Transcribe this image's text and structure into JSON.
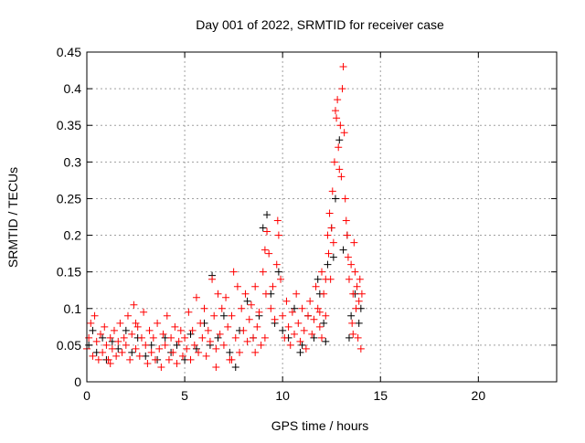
{
  "chart_data": {
    "type": "scatter",
    "title": "Day 001 of 2022, SRMTID for receiver case",
    "xlabel": "GPS time / hours",
    "ylabel": "SRMTID / TECUs",
    "xlim": [
      0,
      24
    ],
    "ylim": [
      0,
      0.45
    ],
    "xticks": [
      "0",
      "5",
      "10",
      "15",
      "20"
    ],
    "yticks": [
      "0",
      "0.05",
      "0.1",
      "0.15",
      "0.2",
      "0.25",
      "0.3",
      "0.35",
      "0.4",
      "0.45"
    ],
    "grid": true,
    "marker": "plus",
    "series": [
      {
        "name": "series-black",
        "color": "#000000",
        "points": [
          [
            0.1,
            0.05
          ],
          [
            0.3,
            0.07
          ],
          [
            0.5,
            0.04
          ],
          [
            0.8,
            0.06
          ],
          [
            1.0,
            0.03
          ],
          [
            1.3,
            0.055
          ],
          [
            1.6,
            0.045
          ],
          [
            2.0,
            0.07
          ],
          [
            2.3,
            0.04
          ],
          [
            2.6,
            0.06
          ],
          [
            3.0,
            0.035
          ],
          [
            3.3,
            0.05
          ],
          [
            3.6,
            0.03
          ],
          [
            4.0,
            0.06
          ],
          [
            4.3,
            0.04
          ],
          [
            4.6,
            0.05
          ],
          [
            5.0,
            0.03
          ],
          [
            5.3,
            0.065
          ],
          [
            5.6,
            0.045
          ],
          [
            6.0,
            0.08
          ],
          [
            6.3,
            0.05
          ],
          [
            6.4,
            0.145
          ],
          [
            6.7,
            0.06
          ],
          [
            7.0,
            0.09
          ],
          [
            7.3,
            0.04
          ],
          [
            7.6,
            0.02
          ],
          [
            7.8,
            0.07
          ],
          [
            8.2,
            0.11
          ],
          [
            8.5,
            0.06
          ],
          [
            8.8,
            0.09
          ],
          [
            9.0,
            0.21
          ],
          [
            9.2,
            0.228
          ],
          [
            9.4,
            0.12
          ],
          [
            9.6,
            0.08
          ],
          [
            9.8,
            0.15
          ],
          [
            10.0,
            0.07
          ],
          [
            10.3,
            0.06
          ],
          [
            10.6,
            0.1
          ],
          [
            11.0,
            0.05
          ],
          [
            11.3,
            0.09
          ],
          [
            11.6,
            0.06
          ],
          [
            11.9,
            0.12
          ],
          [
            12.1,
            0.08
          ],
          [
            12.3,
            0.16
          ],
          [
            12.5,
            0.21
          ],
          [
            12.7,
            0.25
          ],
          [
            12.9,
            0.33
          ],
          [
            13.1,
            0.18
          ],
          [
            13.3,
            0.2
          ],
          [
            13.5,
            0.09
          ],
          [
            13.7,
            0.12
          ],
          [
            13.9,
            0.08
          ],
          [
            14.0,
            0.1
          ],
          [
            12.2,
            0.055
          ],
          [
            10.9,
            0.04
          ],
          [
            11.8,
            0.14
          ],
          [
            12.6,
            0.17
          ],
          [
            13.4,
            0.06
          ]
        ]
      },
      {
        "name": "series-red",
        "color": "#ff0000",
        "points": [
          [
            0.0,
            0.045
          ],
          [
            0.1,
            0.06
          ],
          [
            0.2,
            0.08
          ],
          [
            0.3,
            0.035
          ],
          [
            0.4,
            0.09
          ],
          [
            0.5,
            0.055
          ],
          [
            0.6,
            0.03
          ],
          [
            0.7,
            0.065
          ],
          [
            0.8,
            0.04
          ],
          [
            0.9,
            0.075
          ],
          [
            1.0,
            0.05
          ],
          [
            1.1,
            0.03
          ],
          [
            1.2,
            0.06
          ],
          [
            1.3,
            0.045
          ],
          [
            1.4,
            0.07
          ],
          [
            1.5,
            0.035
          ],
          [
            1.6,
            0.055
          ],
          [
            1.7,
            0.08
          ],
          [
            1.8,
            0.04
          ],
          [
            1.9,
            0.06
          ],
          [
            2.0,
            0.05
          ],
          [
            2.1,
            0.09
          ],
          [
            2.2,
            0.03
          ],
          [
            2.3,
            0.065
          ],
          [
            2.4,
            0.105
          ],
          [
            2.5,
            0.045
          ],
          [
            2.6,
            0.075
          ],
          [
            2.7,
            0.035
          ],
          [
            2.8,
            0.06
          ],
          [
            2.9,
            0.095
          ],
          [
            3.0,
            0.05
          ],
          [
            3.1,
            0.025
          ],
          [
            3.2,
            0.07
          ],
          [
            3.3,
            0.04
          ],
          [
            3.4,
            0.06
          ],
          [
            3.5,
            0.03
          ],
          [
            3.6,
            0.08
          ],
          [
            3.7,
            0.045
          ],
          [
            3.8,
            0.02
          ],
          [
            3.9,
            0.065
          ],
          [
            4.0,
            0.05
          ],
          [
            4.1,
            0.09
          ],
          [
            4.2,
            0.03
          ],
          [
            4.3,
            0.06
          ],
          [
            4.4,
            0.04
          ],
          [
            4.5,
            0.075
          ],
          [
            4.6,
            0.025
          ],
          [
            4.7,
            0.055
          ],
          [
            4.8,
            0.07
          ],
          [
            4.9,
            0.035
          ],
          [
            5.0,
            0.06
          ],
          [
            5.1,
            0.045
          ],
          [
            5.2,
            0.095
          ],
          [
            5.3,
            0.03
          ],
          [
            5.4,
            0.07
          ],
          [
            5.5,
            0.05
          ],
          [
            5.6,
            0.115
          ],
          [
            5.7,
            0.04
          ],
          [
            5.8,
            0.08
          ],
          [
            5.9,
            0.06
          ],
          [
            6.0,
            0.1
          ],
          [
            6.1,
            0.035
          ],
          [
            6.2,
            0.07
          ],
          [
            6.3,
            0.055
          ],
          [
            6.4,
            0.14
          ],
          [
            6.5,
            0.09
          ],
          [
            6.6,
            0.045
          ],
          [
            6.7,
            0.12
          ],
          [
            6.8,
            0.065
          ],
          [
            6.9,
            0.1
          ],
          [
            7.0,
            0.05
          ],
          [
            7.1,
            0.115
          ],
          [
            7.2,
            0.075
          ],
          [
            7.3,
            0.03
          ],
          [
            7.4,
            0.09
          ],
          [
            7.5,
            0.15
          ],
          [
            7.6,
            0.06
          ],
          [
            7.7,
            0.13
          ],
          [
            7.8,
            0.04
          ],
          [
            7.9,
            0.1
          ],
          [
            8.0,
            0.07
          ],
          [
            8.1,
            0.12
          ],
          [
            8.2,
            0.055
          ],
          [
            8.3,
            0.085
          ],
          [
            8.4,
            0.105
          ],
          [
            8.5,
            0.06
          ],
          [
            8.6,
            0.13
          ],
          [
            8.7,
            0.075
          ],
          [
            8.8,
            0.095
          ],
          [
            8.9,
            0.05
          ],
          [
            9.0,
            0.15
          ],
          [
            9.1,
            0.18
          ],
          [
            9.15,
            0.12
          ],
          [
            9.2,
            0.205
          ],
          [
            9.3,
            0.175
          ],
          [
            9.4,
            0.1
          ],
          [
            9.5,
            0.13
          ],
          [
            9.6,
            0.085
          ],
          [
            9.7,
            0.16
          ],
          [
            9.75,
            0.22
          ],
          [
            9.8,
            0.2
          ],
          [
            9.9,
            0.14
          ],
          [
            10.0,
            0.09
          ],
          [
            10.1,
            0.06
          ],
          [
            10.2,
            0.11
          ],
          [
            10.3,
            0.075
          ],
          [
            10.4,
            0.05
          ],
          [
            10.5,
            0.095
          ],
          [
            10.6,
            0.065
          ],
          [
            10.7,
            0.12
          ],
          [
            10.8,
            0.08
          ],
          [
            10.9,
            0.055
          ],
          [
            11.0,
            0.1
          ],
          [
            11.1,
            0.07
          ],
          [
            11.2,
            0.045
          ],
          [
            11.3,
            0.09
          ],
          [
            11.4,
            0.11
          ],
          [
            11.5,
            0.065
          ],
          [
            11.6,
            0.085
          ],
          [
            11.7,
            0.13
          ],
          [
            11.8,
            0.1
          ],
          [
            11.9,
            0.075
          ],
          [
            12.0,
            0.15
          ],
          [
            12.1,
            0.12
          ],
          [
            12.2,
            0.09
          ],
          [
            12.3,
            0.2
          ],
          [
            12.35,
            0.175
          ],
          [
            12.4,
            0.23
          ],
          [
            12.45,
            0.14
          ],
          [
            12.5,
            0.21
          ],
          [
            12.55,
            0.26
          ],
          [
            12.6,
            0.19
          ],
          [
            12.65,
            0.3
          ],
          [
            12.7,
            0.37
          ],
          [
            12.75,
            0.36
          ],
          [
            12.8,
            0.385
          ],
          [
            12.85,
            0.32
          ],
          [
            12.9,
            0.29
          ],
          [
            12.95,
            0.35
          ],
          [
            13.0,
            0.28
          ],
          [
            13.05,
            0.4
          ],
          [
            13.1,
            0.43
          ],
          [
            13.15,
            0.34
          ],
          [
            13.2,
            0.25
          ],
          [
            13.25,
            0.22
          ],
          [
            13.3,
            0.2
          ],
          [
            13.35,
            0.17
          ],
          [
            13.4,
            0.14
          ],
          [
            13.5,
            0.16
          ],
          [
            13.55,
            0.08
          ],
          [
            13.6,
            0.12
          ],
          [
            13.65,
            0.19
          ],
          [
            13.7,
            0.15
          ],
          [
            13.75,
            0.1
          ],
          [
            13.8,
            0.13
          ],
          [
            13.85,
            0.06
          ],
          [
            13.9,
            0.11
          ],
          [
            13.95,
            0.14
          ],
          [
            14.0,
            0.045
          ],
          [
            14.05,
            0.12
          ],
          [
            12.0,
            0.06
          ],
          [
            12.2,
            0.14
          ],
          [
            11.9,
            0.095
          ],
          [
            13.6,
            0.065
          ],
          [
            9.1,
            0.06
          ],
          [
            8.6,
            0.04
          ],
          [
            7.4,
            0.03
          ],
          [
            6.6,
            0.02
          ],
          [
            2.5,
            0.08
          ],
          [
            1.2,
            0.025
          ]
        ]
      }
    ]
  }
}
